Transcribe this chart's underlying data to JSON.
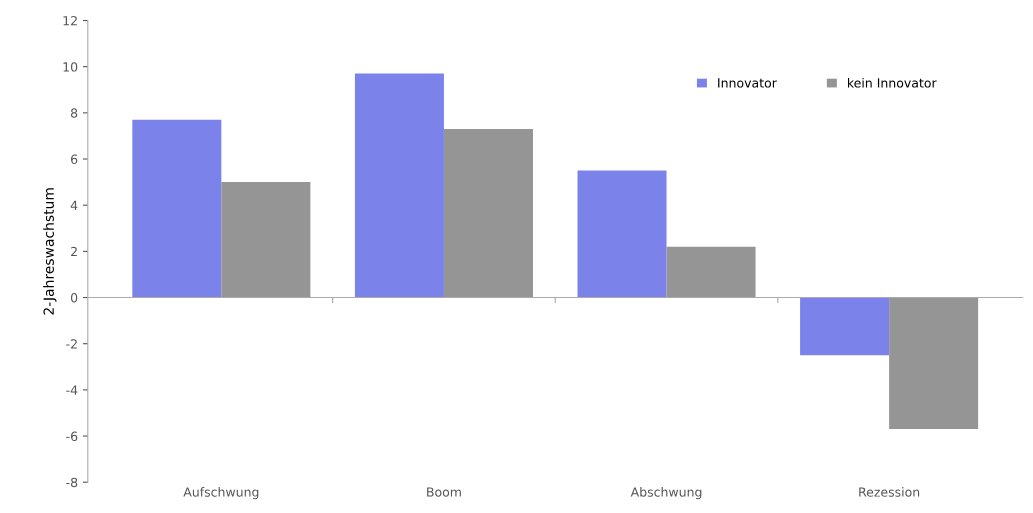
{
  "chart_data": {
    "type": "bar",
    "ylabel": "2-Jahreswachstum",
    "categories": [
      "Aufschwung",
      "Boom",
      "Abschwung",
      "Rezession"
    ],
    "series": [
      {
        "name": "Innovator",
        "color": "#7b83eb",
        "values": [
          7.7,
          9.7,
          5.5,
          -2.5
        ]
      },
      {
        "name": "kein Innovator",
        "color": "#959595",
        "values": [
          5.0,
          7.3,
          2.2,
          -5.7
        ]
      }
    ],
    "ylim": [
      -8,
      12
    ],
    "yticks": [
      -8,
      -6,
      -4,
      -2,
      0,
      2,
      4,
      6,
      8,
      10,
      12
    ],
    "legend": "top right"
  }
}
